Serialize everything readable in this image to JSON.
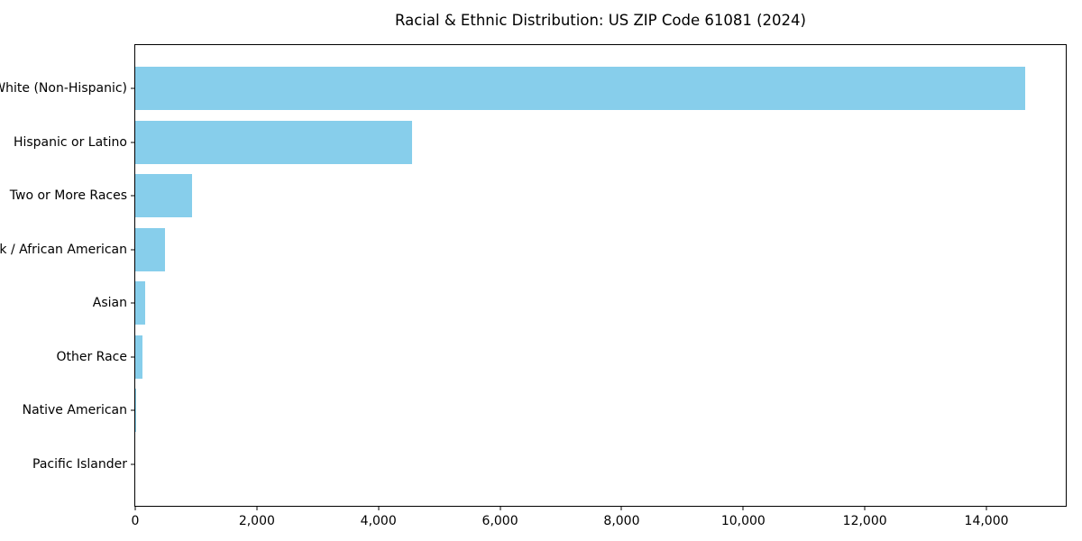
{
  "title": "Racial & Ethnic Distribution: US ZIP Code 61081 (2024)",
  "colors": {
    "bar": "#87CEEB",
    "spine": "#000000",
    "text": "#000000",
    "background": "#ffffff"
  },
  "chart_data": {
    "type": "bar",
    "orientation": "horizontal",
    "title": "Racial & Ethnic Distribution: US ZIP Code 61081 (2024)",
    "categories": [
      "White (Non-Hispanic)",
      "Hispanic or Latino",
      "Two or More Races",
      "Black / African American",
      "Asian",
      "Other Race",
      "Native American",
      "Pacific Islander"
    ],
    "values": [
      14630,
      4550,
      930,
      490,
      170,
      115,
      10,
      0
    ],
    "xlabel": "",
    "ylabel": "",
    "xlim": [
      0,
      15334
    ],
    "x_ticks": [
      0,
      2000,
      4000,
      6000,
      8000,
      10000,
      12000,
      14000
    ],
    "x_tick_labels": [
      "0",
      "2,000",
      "4,000",
      "6,000",
      "8,000",
      "10,000",
      "12,000",
      "14,000"
    ],
    "grid": false,
    "legend": null,
    "bar_color": "#87CEEB"
  }
}
